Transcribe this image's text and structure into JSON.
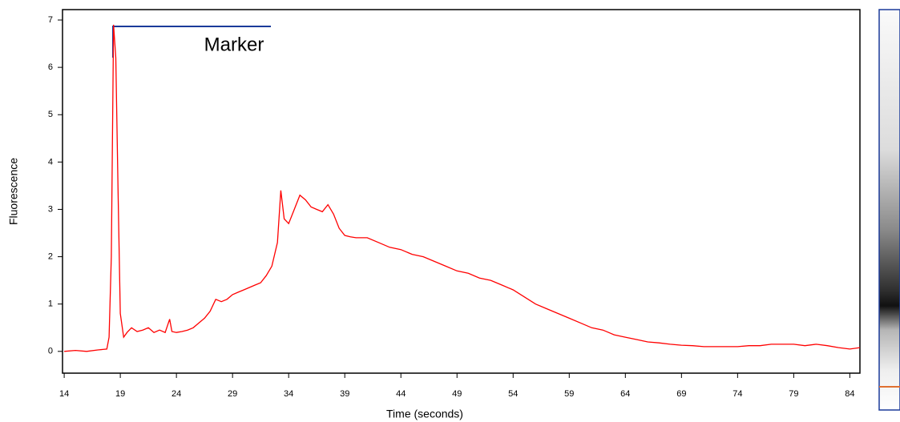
{
  "chart_data": {
    "type": "line",
    "x_label": "Time (seconds)",
    "y_label": "Fluorescence",
    "annotation": "Marker",
    "color": "#ff0000",
    "x": [
      14,
      15,
      16,
      17,
      17.8,
      18.0,
      18.2,
      18.4,
      18.6,
      18.8,
      19.0,
      19.3,
      19.6,
      20,
      20.5,
      21,
      21.5,
      22,
      22.5,
      23,
      23.4,
      23.6,
      24,
      24.5,
      25,
      25.5,
      26,
      26.5,
      27,
      27.5,
      28,
      28.5,
      29,
      29.5,
      30,
      30.5,
      31,
      31.5,
      32,
      32.5,
      33,
      33.3,
      33.6,
      34,
      34.5,
      35,
      35.5,
      36,
      36.5,
      37,
      37.5,
      38,
      38.5,
      39,
      39.5,
      40,
      41,
      42,
      43,
      44,
      45,
      46,
      47,
      48,
      49,
      50,
      51,
      52,
      53,
      54,
      55,
      56,
      57,
      58,
      59,
      60,
      61,
      62,
      63,
      64,
      65,
      66,
      67,
      68,
      69,
      70,
      71,
      72,
      73,
      74,
      75,
      76,
      77,
      78,
      79,
      80,
      81,
      82,
      83,
      84,
      84.9
    ],
    "values": [
      0.0,
      0.02,
      0.0,
      0.03,
      0.05,
      0.3,
      2.0,
      6.9,
      6.2,
      3.4,
      0.8,
      0.3,
      0.4,
      0.5,
      0.42,
      0.45,
      0.5,
      0.4,
      0.45,
      0.4,
      0.68,
      0.42,
      0.4,
      0.42,
      0.45,
      0.5,
      0.6,
      0.7,
      0.85,
      1.1,
      1.05,
      1.1,
      1.2,
      1.25,
      1.3,
      1.35,
      1.4,
      1.45,
      1.6,
      1.8,
      2.3,
      3.4,
      2.8,
      2.7,
      3.0,
      3.3,
      3.2,
      3.05,
      3.0,
      2.95,
      3.1,
      2.9,
      2.6,
      2.45,
      2.42,
      2.4,
      2.4,
      2.3,
      2.2,
      2.15,
      2.05,
      2.0,
      1.9,
      1.8,
      1.7,
      1.65,
      1.55,
      1.5,
      1.4,
      1.3,
      1.15,
      1.0,
      0.9,
      0.8,
      0.7,
      0.6,
      0.5,
      0.45,
      0.35,
      0.3,
      0.25,
      0.2,
      0.18,
      0.15,
      0.13,
      0.12,
      0.1,
      0.1,
      0.1,
      0.1,
      0.12,
      0.12,
      0.15,
      0.15,
      0.15,
      0.12,
      0.15,
      0.12,
      0.08,
      0.05,
      0.08
    ],
    "xlim": [
      13.85,
      84.9
    ],
    "ylim": [
      -0.46,
      7.22
    ],
    "xticks": [
      14,
      19,
      24,
      29,
      34,
      39,
      44,
      49,
      54,
      59,
      64,
      69,
      74,
      79,
      84
    ],
    "yticks": [
      0,
      1,
      2,
      3,
      4,
      5,
      6,
      7
    ]
  }
}
